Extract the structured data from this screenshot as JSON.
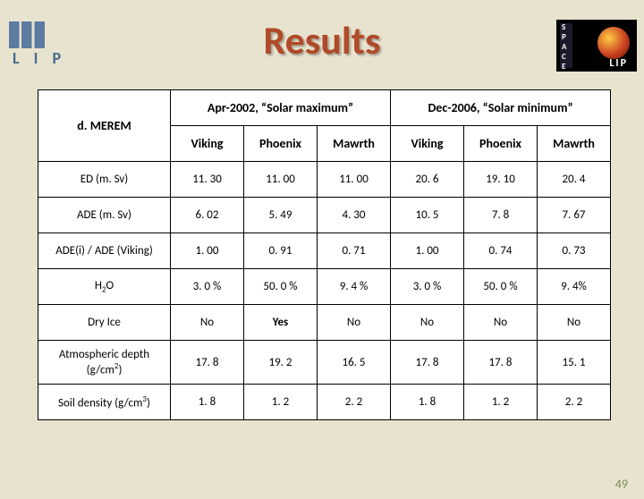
{
  "title": "Results",
  "logos": {
    "left_text": "L  I  P",
    "right_text": "LIP",
    "right_vtext": "S\nP\nA\nC\nE"
  },
  "page_number": "49",
  "table": {
    "corner_label": "d. MEREM",
    "group_headers": [
      "Apr-2002, “Solar maximum”",
      "Dec-2006, “Solar minimum”"
    ],
    "sub_headers": [
      "Viking",
      "Phoenix",
      "Mawrth",
      "Viking",
      "Phoenix",
      "Mawrth"
    ],
    "rows": [
      {
        "label": "ED (m. Sv)",
        "label_html": "ED (m. Sv)",
        "cells": [
          "11. 30",
          "11. 00",
          "11. 00",
          "20. 6",
          "19. 10",
          "20. 4"
        ]
      },
      {
        "label": "ADE (m. Sv)",
        "label_html": "ADE (m. Sv)",
        "cells": [
          "6. 02",
          "5. 49",
          "4. 30",
          "10. 5",
          "7. 8",
          "7. 67"
        ]
      },
      {
        "label": "ADE(i) / ADE (Viking)",
        "label_html": "ADE(i) / ADE (Viking)",
        "cells": [
          "1. 00",
          "0. 91",
          "0. 71",
          "1. 00",
          "0. 74",
          "0. 73"
        ]
      },
      {
        "label": "H2O",
        "label_html": "H<sub>2</sub>O",
        "cells": [
          "3. 0 %",
          "50. 0 %",
          "9. 4 %",
          "3. 0 %",
          "50. 0 %",
          "9. 4%"
        ]
      },
      {
        "label": "Dry Ice",
        "label_html": "Dry Ice",
        "cells": [
          "No",
          "Yes",
          "No",
          "No",
          "No",
          "No"
        ]
      },
      {
        "label": "Atmospheric depth (g/cm2)",
        "label_html": "Atmospheric depth (g/cm<sup>2</sup>)",
        "cells": [
          "17. 8",
          "19. 2",
          "16. 5",
          "17. 8",
          "17. 8",
          "15. 1"
        ]
      },
      {
        "label": "Soil density (g/cm3)",
        "label_html": "Soil density (g/cm<sup>3</sup>)",
        "cells": [
          "1. 8",
          "1. 2",
          "2. 2",
          "1. 8",
          "1. 2",
          "2. 2"
        ]
      }
    ],
    "colors": {
      "slide_bg": "#e8e3cf",
      "title_color": "#b04a28",
      "border": "#000000",
      "cell_bg": "#ffffff",
      "page_num": "#7b8a5a"
    }
  }
}
